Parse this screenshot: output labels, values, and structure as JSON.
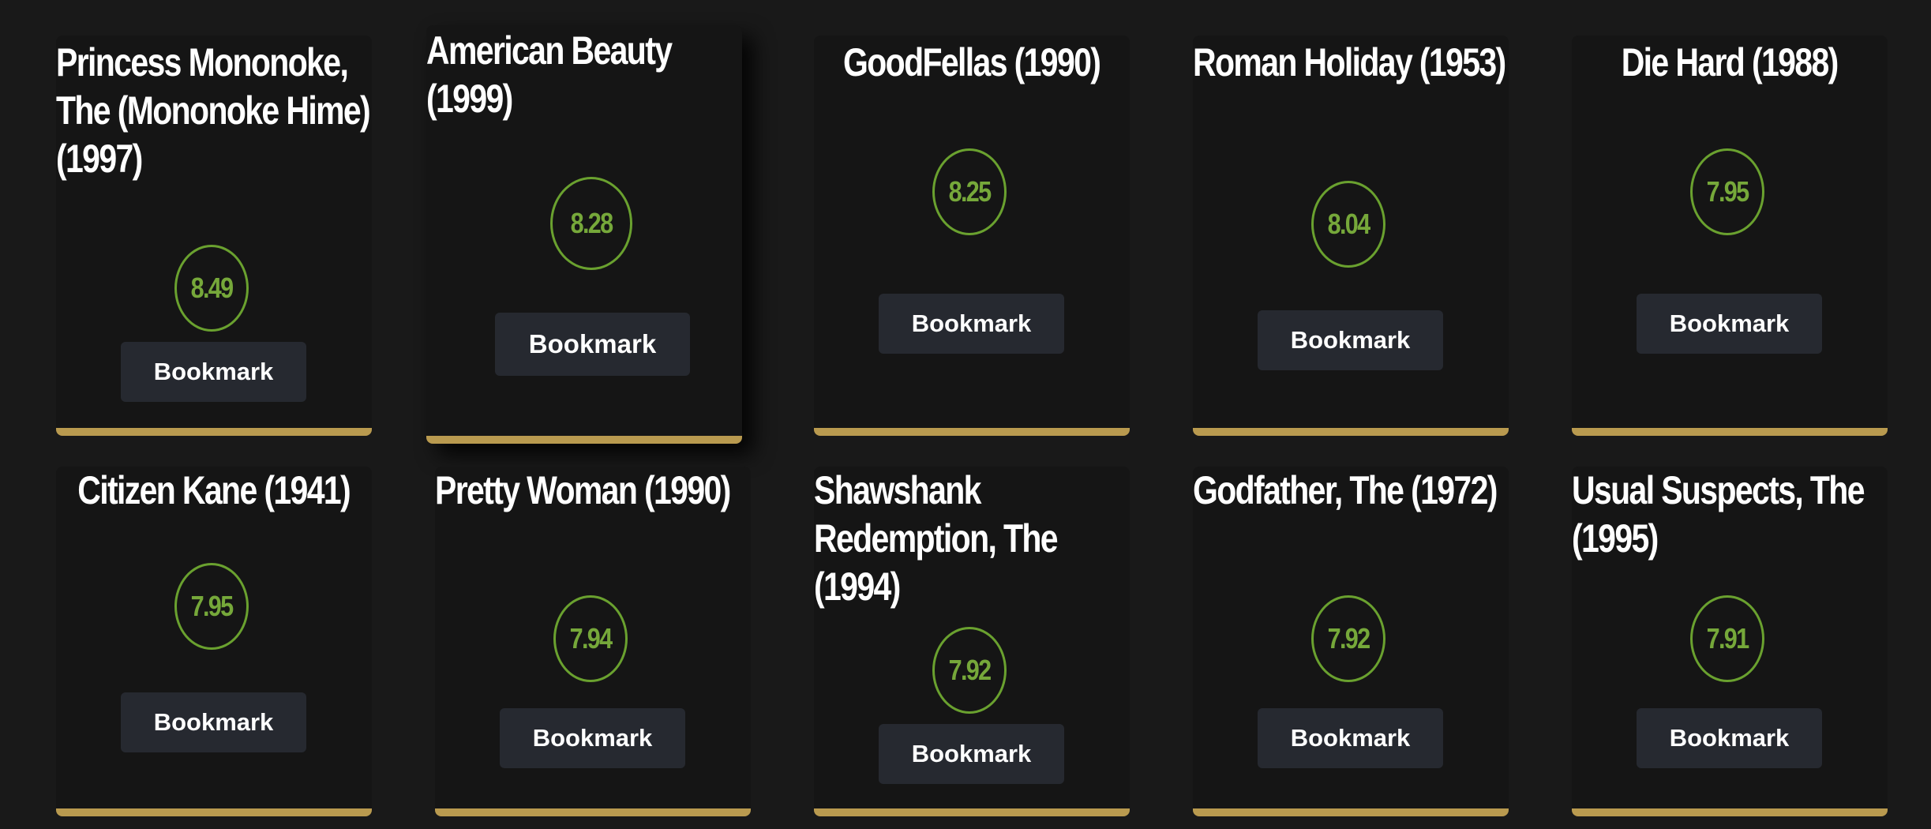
{
  "movies": [
    {
      "title": "Princess Mononoke, The (Mononoke Hime) (1997)",
      "rating": "8.49",
      "bookmark_label": "Bookmark"
    },
    {
      "title": "American Beauty (1999)",
      "rating": "8.28",
      "bookmark_label": "Bookmark"
    },
    {
      "title": "GoodFellas (1990)",
      "rating": "8.25",
      "bookmark_label": "Bookmark"
    },
    {
      "title": "Roman Holiday (1953)",
      "rating": "8.04",
      "bookmark_label": "Bookmark"
    },
    {
      "title": "Die Hard (1988)",
      "rating": "7.95",
      "bookmark_label": "Bookmark"
    },
    {
      "title": "Citizen Kane (1941)",
      "rating": "7.95",
      "bookmark_label": "Bookmark"
    },
    {
      "title": "Pretty Woman (1990)",
      "rating": "7.94",
      "bookmark_label": "Bookmark"
    },
    {
      "title": "Shawshank Redemption, The (1994)",
      "rating": "7.92",
      "bookmark_label": "Bookmark"
    },
    {
      "title": "Godfather, The (1972)",
      "rating": "7.92",
      "bookmark_label": "Bookmark"
    },
    {
      "title": "Usual Suspects, The (1995)",
      "rating": "7.91",
      "bookmark_label": "Bookmark"
    }
  ],
  "colors": {
    "background": "#191919",
    "card": "#151515",
    "accent_bar": "#b99a4f",
    "rating_ring": "#6aa12f",
    "rating_text": "#76a83a",
    "button": "#262930"
  }
}
